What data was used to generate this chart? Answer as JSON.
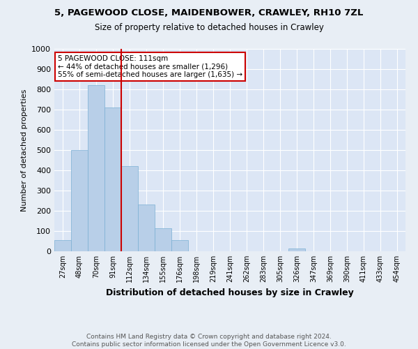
{
  "title1": "5, PAGEWOOD CLOSE, MAIDENBOWER, CRAWLEY, RH10 7ZL",
  "title2": "Size of property relative to detached houses in Crawley",
  "xlabel": "Distribution of detached houses by size in Crawley",
  "ylabel": "Number of detached properties",
  "categories": [
    "27sqm",
    "48sqm",
    "70sqm",
    "91sqm",
    "112sqm",
    "134sqm",
    "155sqm",
    "176sqm",
    "198sqm",
    "219sqm",
    "241sqm",
    "262sqm",
    "283sqm",
    "305sqm",
    "326sqm",
    "347sqm",
    "369sqm",
    "390sqm",
    "411sqm",
    "433sqm",
    "454sqm"
  ],
  "values": [
    55,
    500,
    820,
    710,
    420,
    230,
    115,
    55,
    0,
    0,
    0,
    0,
    0,
    0,
    15,
    0,
    0,
    0,
    0,
    0,
    0
  ],
  "bar_color": "#b8cfe8",
  "bar_edge_color": "#7aafd4",
  "vline_x_index": 3.5,
  "annotation_text": "5 PAGEWOOD CLOSE: 111sqm\n← 44% of detached houses are smaller (1,296)\n55% of semi-detached houses are larger (1,635) →",
  "annotation_box_color": "#ffffff",
  "annotation_box_edge_color": "#cc0000",
  "vline_color": "#cc0000",
  "background_color": "#e8eef5",
  "plot_background_color": "#dce6f5",
  "grid_color": "#ffffff",
  "footer": "Contains HM Land Registry data © Crown copyright and database right 2024.\nContains public sector information licensed under the Open Government Licence v3.0.",
  "ylim": [
    0,
    1000
  ],
  "yticks": [
    0,
    100,
    200,
    300,
    400,
    500,
    600,
    700,
    800,
    900,
    1000
  ],
  "title1_fontsize": 9.5,
  "title2_fontsize": 8.5,
  "ylabel_fontsize": 8,
  "xlabel_fontsize": 9,
  "tick_fontsize": 7,
  "footer_fontsize": 6.5
}
